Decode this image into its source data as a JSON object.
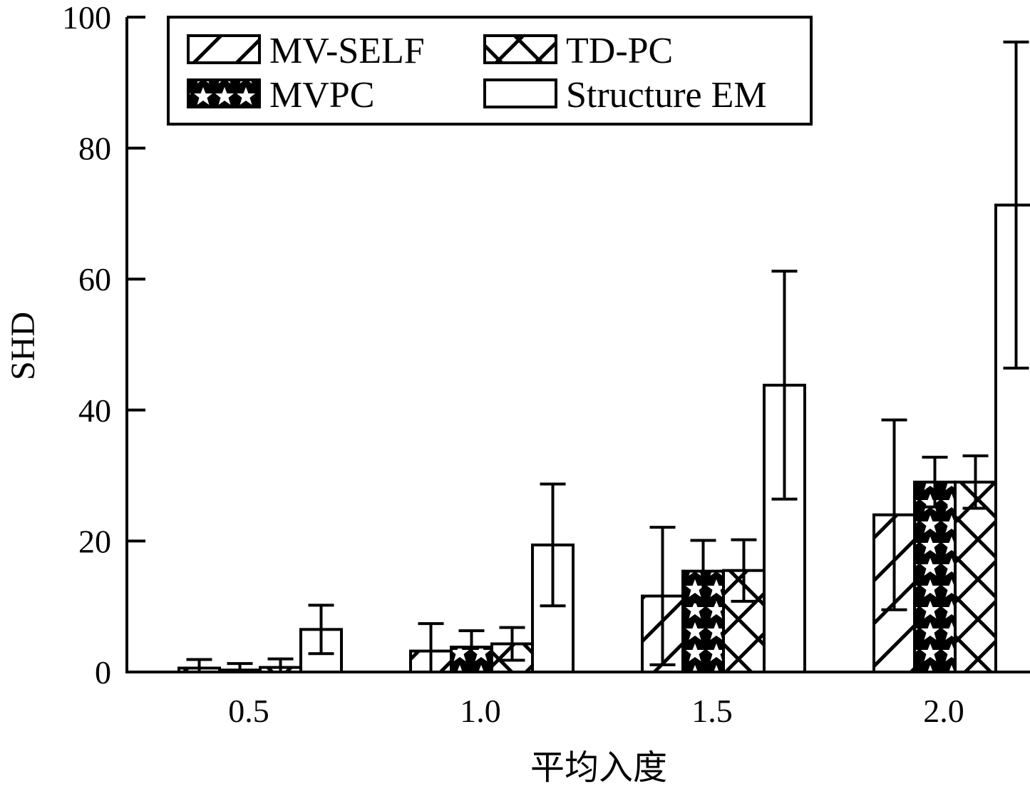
{
  "chart_data": {
    "type": "bar",
    "xlabel": "平均入度",
    "ylabel": "SHD",
    "ylim": [
      0,
      100
    ],
    "yticks": [
      0,
      20,
      40,
      60,
      80,
      100
    ],
    "categories": [
      "0.5",
      "1.0",
      "1.5",
      "2.0"
    ],
    "grid": false,
    "legend_position": "top-left",
    "series": [
      {
        "name": "MV-SELF",
        "pattern": "diagonal-hatch",
        "values": [
          0.6,
          3.2,
          11.6,
          24.0
        ],
        "errors": [
          1.3,
          4.2,
          10.5,
          14.5
        ]
      },
      {
        "name": "MVPC",
        "pattern": "star-dense",
        "values": [
          0.3,
          3.8,
          15.4,
          29.0
        ],
        "errors": [
          1.0,
          2.5,
          4.7,
          3.8
        ]
      },
      {
        "name": "TD-PC",
        "pattern": "cross-hatch",
        "values": [
          0.7,
          4.3,
          15.5,
          29.0
        ],
        "errors": [
          1.3,
          2.5,
          4.7,
          4.0
        ]
      },
      {
        "name": "Structure EM",
        "pattern": "none",
        "values": [
          6.5,
          19.4,
          43.8,
          71.3
        ],
        "errors": [
          3.7,
          9.3,
          17.4,
          24.9
        ]
      }
    ]
  }
}
